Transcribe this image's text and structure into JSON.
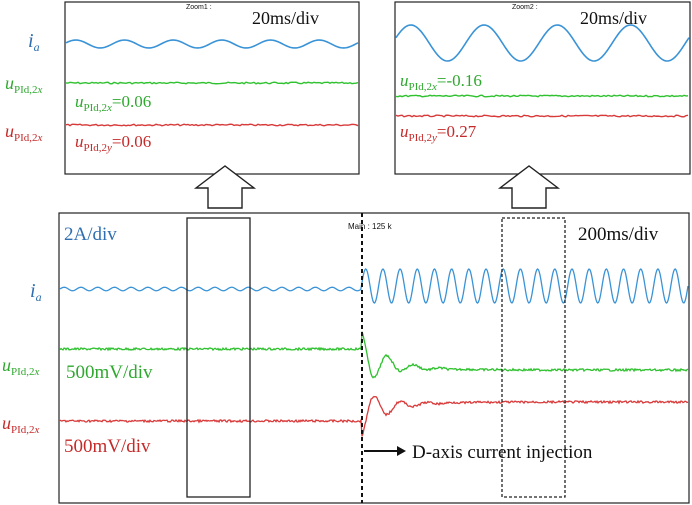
{
  "colors": {
    "ia": "#3a93d6",
    "green": "#2fc12f",
    "red": "#d83a3a",
    "text_blue": "#2f6fb0",
    "text_green": "#2fa82f",
    "text_red": "#c52a2a",
    "frame": "#222222"
  },
  "chart_data": [
    {
      "type": "line",
      "panel": "zoom1",
      "zoom_label": "Zoom1 :",
      "time_scale": "20ms/div",
      "series": [
        {
          "name": "i_a",
          "kind": "sine",
          "amplitude": 0.22,
          "cycles": 6,
          "offset": 0
        },
        {
          "name": "u_PId,2x",
          "kind": "flat",
          "value": 0.06
        },
        {
          "name": "u_PId,2y",
          "kind": "flat",
          "value": 0.06
        }
      ],
      "annotations": [
        {
          "var": "u",
          "sub": "PId,2",
          "sub_italic": "x",
          "eq": "=0.06"
        },
        {
          "var": "u",
          "sub": "PId,2",
          "sub_italic": "y",
          "eq": "=0.06"
        }
      ]
    },
    {
      "type": "line",
      "panel": "zoom2",
      "zoom_label": "Zoom2 :",
      "time_scale": "20ms/div",
      "series": [
        {
          "name": "i_a",
          "kind": "sine",
          "amplitude": 1.0,
          "cycles": 4,
          "offset": 0
        },
        {
          "name": "u_PId,2x",
          "kind": "flat",
          "value": -0.16
        },
        {
          "name": "u_PId,2y",
          "kind": "flat",
          "value": 0.27
        }
      ],
      "annotations": [
        {
          "var": "u",
          "sub": "PId,2",
          "sub_italic": "x",
          "eq": "=-0.16"
        },
        {
          "var": "u",
          "sub": "PId,2",
          "sub_italic": "y",
          "eq": "=0.27"
        }
      ]
    },
    {
      "type": "line",
      "panel": "main",
      "main_label": "Main : 125 k",
      "time_scale": "200ms/div",
      "current_scale": "2A/div",
      "voltage_scale_x": "500mV/div",
      "voltage_scale_y": "500mV/div",
      "event": "D-axis current injection",
      "event_time_fraction": 0.48,
      "series": [
        {
          "name": "i_a",
          "before": {
            "amplitude": 0.25,
            "cycles": 18
          },
          "after": {
            "amplitude": 1.0,
            "cycles": 19
          }
        },
        {
          "name": "u_PId,2x",
          "before_value": 0.06,
          "after_value": -0.16
        },
        {
          "name": "u_PId,2y",
          "before_value": 0.06,
          "after_value": 0.27
        }
      ]
    }
  ],
  "labels": {
    "ia_var": "i",
    "ia_sub": "a",
    "u_var": "u",
    "u_sub": "PId,2",
    "u_sub_x": "x",
    "u_sub_y": "x"
  }
}
